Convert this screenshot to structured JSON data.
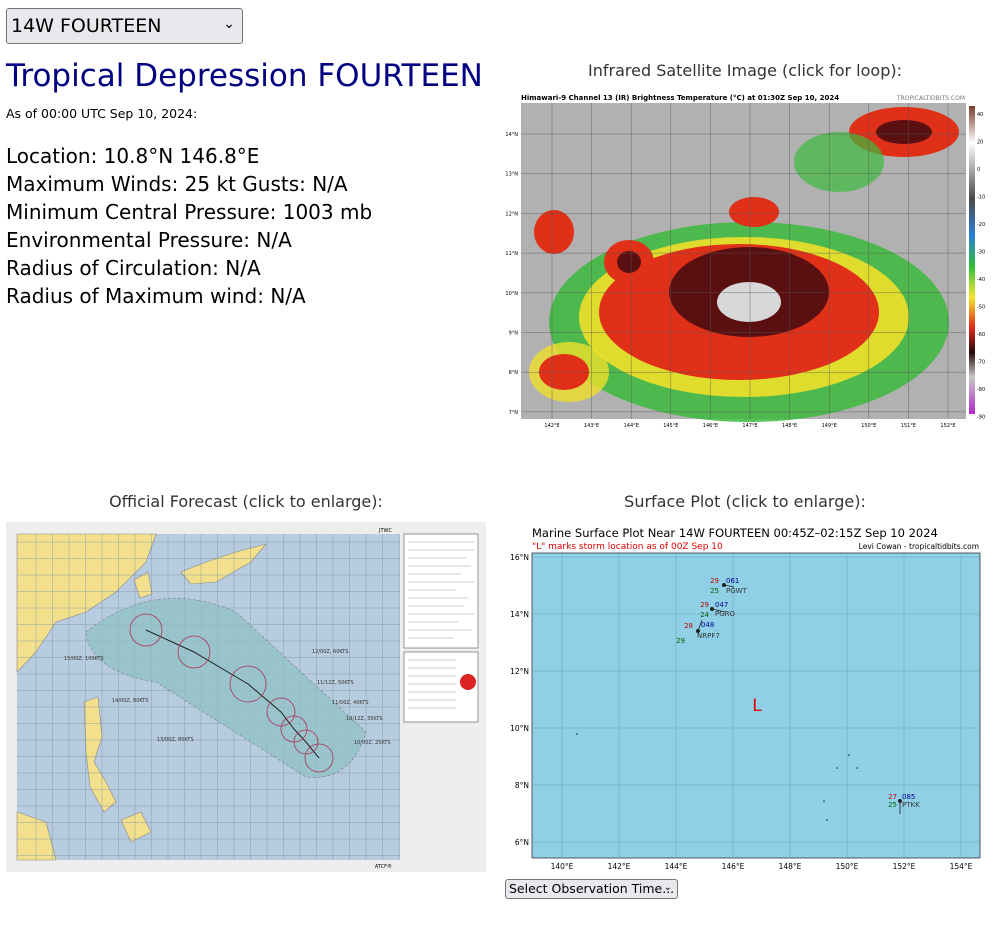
{
  "storm_selector": {
    "value": "14W FOURTEEN"
  },
  "storm": {
    "title": "Tropical Depression FOURTEEN",
    "as_of": "As of 00:00 UTC Sep 10, 2024:",
    "location": "Location: 10.8°N 146.8°E",
    "winds": "Maximum Winds: 25 kt  Gusts: N/A",
    "pressure": "Minimum Central Pressure: 1003 mb",
    "env_pressure": "Environmental Pressure: N/A",
    "radius_circulation": "Radius of Circulation: N/A",
    "radius_max_wind": "Radius of Maximum wind: N/A"
  },
  "satellite": {
    "caption": "Infrared Satellite Image (click for loop):",
    "header": "Himawari-9 Channel 13 (IR) Brightness Temperature (°C) at 01:30Z Sep 10, 2024",
    "credit": "TROPICALTIDBITS.COM",
    "lat_labels": [
      "14°N",
      "13°N",
      "12°N",
      "11°N",
      "10°N",
      "9°N",
      "8°N",
      "7°N"
    ],
    "lon_labels": [
      "142°E",
      "143°E",
      "144°E",
      "145°E",
      "146°E",
      "147°E",
      "148°E",
      "149°E",
      "150°E",
      "151°E",
      "152°E"
    ],
    "scale_labels": [
      "40",
      "20",
      "0",
      "-10",
      "-20",
      "-30",
      "-40",
      "-50",
      "-60",
      "-70",
      "-80",
      "-90"
    ]
  },
  "forecast": {
    "caption": "Official Forecast (click to enlarge):",
    "header": "JTWC",
    "footer": "ATCF®",
    "points": [
      "10/00Z, 25KTS",
      "10/12Z, 35KTS",
      "11/00Z, 40KTS",
      "11/12Z, 50KTS",
      "12/00Z, 60KTS",
      "13/00Z, 85KTS",
      "14/00Z, 80KTS",
      "15/00Z, 100KTS"
    ]
  },
  "surface": {
    "caption": "Surface Plot (click to enlarge):",
    "title": "Marine Surface Plot Near 14W FOURTEEN 00:45Z–02:15Z Sep 10 2024",
    "subtitle": "\"L\" marks storm location as of 00Z Sep 10",
    "credit": "Levi Cowan - tropicaltidbits.com",
    "lat_labels": [
      "16°N",
      "14°N",
      "12°N",
      "10°N",
      "8°N",
      "6°N"
    ],
    "lon_labels": [
      "140°E",
      "142°E",
      "144°E",
      "146°E",
      "148°E",
      "150°E",
      "152°E",
      "154°E"
    ],
    "storm_marker": "L",
    "stations": [
      {
        "id": "PGWT",
        "temp": "29",
        "dew": "25",
        "pressure": "061"
      },
      {
        "id": "PGRO",
        "temp": "29",
        "dew": "24",
        "pressure": "047"
      },
      {
        "id": "NRPF7",
        "temp": "28",
        "dew": "29",
        "pressure": "048"
      },
      {
        "id": "PTKK",
        "temp": "27",
        "dew": "25",
        "pressure": "085"
      }
    ]
  },
  "observation_select": {
    "value": "Select Observation Time..."
  },
  "colors": {
    "title": "#000080",
    "storm_marker": "#e00000",
    "ocean": "#8fd0e6",
    "land": "#f2e08c"
  }
}
